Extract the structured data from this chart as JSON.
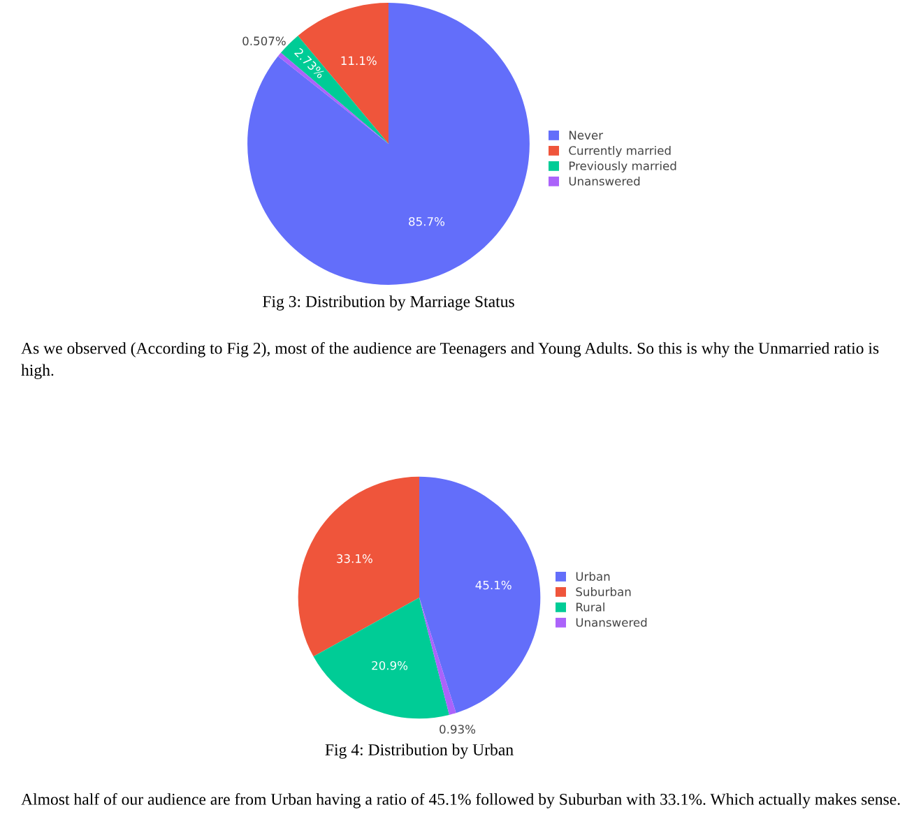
{
  "chart_data": [
    {
      "type": "pie",
      "title": "Fig 3: Distribution by Marriage Status",
      "categories": [
        "Never",
        "Currently married",
        "Previously married",
        "Unanswered"
      ],
      "values": [
        85.7,
        11.1,
        2.73,
        0.507
      ],
      "colors": [
        "#636efa",
        "#ef553b",
        "#00cc96",
        "#ab63fa"
      ],
      "value_labels": [
        "85.7%",
        "11.1%",
        "2.73%",
        "0.507%"
      ],
      "legend": "right",
      "annotations": [
        "As we observed (According to Fig 2), most of the audience are Teenagers and Young Adults. So this is why the Unmarried ratio is high."
      ]
    },
    {
      "type": "pie",
      "title": "Fig 4: Distribution by Urban",
      "categories": [
        "Urban",
        "Suburban",
        "Rural",
        "Unanswered"
      ],
      "values": [
        45.1,
        33.1,
        20.9,
        0.93
      ],
      "colors": [
        "#636efa",
        "#ef553b",
        "#00cc96",
        "#ab63fa"
      ],
      "value_labels": [
        "45.1%",
        "33.1%",
        "20.9%",
        "0.93%"
      ],
      "legend": "right",
      "annotations": [
        "Almost half of our audience are from Urban having a ratio of 45.1% followed by Suburban with 33.1%. Which actually makes sense."
      ]
    }
  ]
}
